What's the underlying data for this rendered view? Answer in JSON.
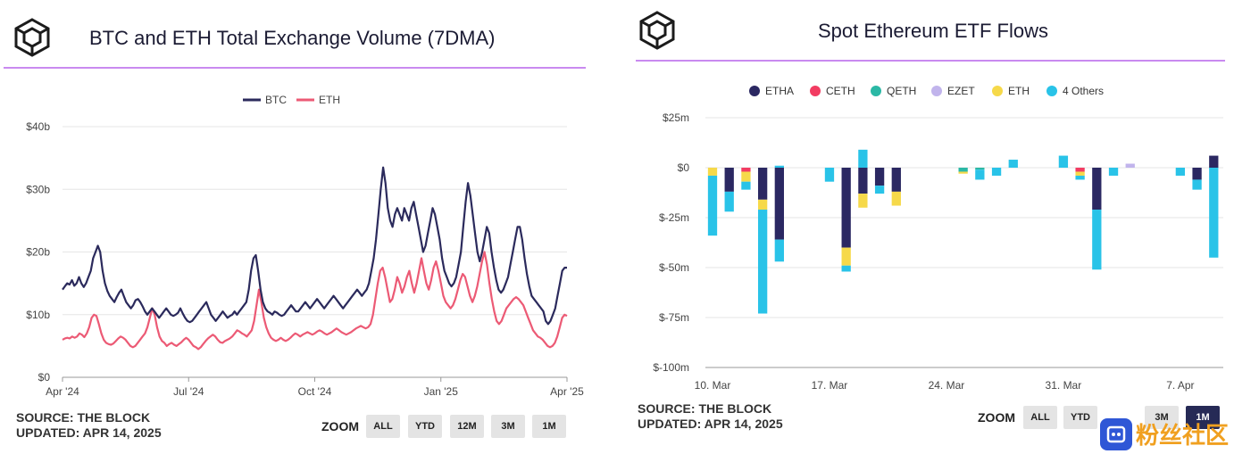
{
  "charts": [
    {
      "title": "BTC and ETH Total Exchange Volume (7DMA)",
      "footer": {
        "source": "SOURCE: THE BLOCK",
        "updated": "UPDATED: APR 14, 2025"
      },
      "zoom": {
        "label": "ZOOM",
        "buttons": [
          "ALL",
          "YTD",
          "12M",
          "3M",
          "1M"
        ]
      }
    },
    {
      "title": "Spot Ethereum ETF Flows",
      "footer": {
        "source": "SOURCE: THE BLOCK",
        "updated": "UPDATED: APR 14, 2025"
      },
      "zoom": {
        "label": "ZOOM",
        "buttons": [
          "ALL",
          "YTD",
          "3M",
          "1M"
        ],
        "active": "1M"
      }
    }
  ],
  "watermark": {
    "text": "粉丝社区"
  },
  "chart_data": [
    {
      "type": "line",
      "title": "BTC and ETH Total Exchange Volume (7DMA)",
      "xlabel": "",
      "ylabel": "",
      "x_ticks": [
        "Apr '24",
        "Jul '24",
        "Oct '24",
        "Jan '25",
        "Apr '25"
      ],
      "y_ticks": [
        "$0",
        "$10b",
        "$20b",
        "$30b",
        "$40b"
      ],
      "ylim": [
        0,
        40
      ],
      "grid": true,
      "legend": "top-center",
      "series": [
        {
          "name": "BTC",
          "color": "#2b2a5c",
          "values": [
            14,
            14.5,
            15,
            14.8,
            15.5,
            14.6,
            15,
            16,
            15,
            14.4,
            15,
            16,
            17,
            19,
            20,
            21,
            20,
            17,
            15,
            13.8,
            13,
            12.5,
            12,
            12.8,
            13.5,
            14,
            13,
            12,
            11.5,
            11,
            11.5,
            12.3,
            12.5,
            12,
            11.3,
            10.5,
            10,
            10.5,
            11,
            10.5,
            10,
            9.5,
            10,
            10.5,
            11,
            10.5,
            10,
            9.8,
            10,
            10.3,
            11,
            10.2,
            9.5,
            9,
            8.8,
            9,
            9.5,
            10,
            10.5,
            11,
            11.5,
            12,
            11,
            10,
            9.5,
            9,
            9.5,
            10,
            10.5,
            10,
            9.5,
            9.8,
            10,
            10.5,
            10,
            10.5,
            11,
            11.5,
            12,
            14,
            17,
            19,
            19.5,
            17,
            14,
            12,
            11,
            10.5,
            10.3,
            10,
            10.5,
            10.3,
            10,
            9.8,
            10,
            10.5,
            11,
            11.5,
            11,
            10.5,
            10.5,
            11,
            11.5,
            12,
            11.5,
            11,
            11.5,
            12,
            12.5,
            12,
            11.5,
            11,
            11.5,
            12,
            12.5,
            13,
            12.5,
            12,
            11.5,
            11,
            11.5,
            12,
            12.5,
            13,
            13.5,
            14,
            13.5,
            13,
            13.5,
            14,
            15,
            17,
            19,
            22,
            26,
            30,
            33.5,
            31,
            27,
            25,
            24,
            26,
            27,
            26,
            25,
            27,
            26,
            25,
            27,
            28,
            26,
            24,
            22,
            20,
            21,
            23,
            25,
            27,
            26,
            24,
            22,
            19,
            17,
            16,
            15,
            14.5,
            15,
            16,
            18,
            20,
            24,
            28,
            31,
            29,
            26,
            23,
            20,
            18.5,
            20,
            22,
            24,
            23,
            20,
            17.5,
            15.5,
            14,
            13.5,
            14,
            15,
            16,
            18,
            20,
            22,
            24,
            24,
            22,
            19,
            16.5,
            14.5,
            13,
            12.5,
            12,
            11.5,
            11,
            10.5,
            9,
            8.5,
            9,
            10,
            11,
            13,
            15,
            17,
            17.5,
            17.5
          ]
        },
        {
          "name": "ETH",
          "color": "#ec5a75",
          "values": [
            6,
            6.2,
            6.3,
            6.2,
            6.5,
            6.3,
            6.5,
            7,
            6.8,
            6.4,
            7,
            8,
            9.5,
            10,
            9.8,
            8.5,
            7,
            6,
            5.5,
            5.3,
            5.2,
            5.4,
            5.8,
            6.2,
            6.5,
            6.3,
            6,
            5.5,
            5,
            4.8,
            5,
            5.5,
            6,
            6.5,
            7,
            8,
            9.5,
            11,
            10,
            8,
            6.5,
            5.8,
            5.5,
            5,
            5.3,
            5.5,
            5.2,
            5,
            5.3,
            5.6,
            6,
            6.3,
            6,
            5.5,
            5,
            4.8,
            4.5,
            4.8,
            5.3,
            5.8,
            6.2,
            6.5,
            6.8,
            6.5,
            6,
            5.6,
            5.5,
            5.8,
            6,
            6.2,
            6.5,
            7,
            7.5,
            7.3,
            7,
            6.8,
            6.5,
            7,
            7.5,
            9,
            11.5,
            14,
            12,
            9.5,
            8,
            7,
            6.3,
            6,
            5.8,
            6,
            6.3,
            6,
            5.8,
            6,
            6.3,
            6.7,
            7,
            6.8,
            6.5,
            6.8,
            7,
            7.2,
            7,
            6.8,
            7,
            7.3,
            7.5,
            7.3,
            7,
            6.8,
            7,
            7.2,
            7.5,
            7.8,
            7.5,
            7.2,
            7,
            6.8,
            7,
            7.2,
            7.5,
            7.8,
            8,
            8.2,
            8,
            7.8,
            8,
            8.5,
            10,
            12.5,
            15,
            17,
            17.5,
            16,
            14,
            12,
            12.5,
            14,
            16,
            15,
            13.5,
            14.5,
            16,
            17,
            15,
            13.5,
            15,
            17,
            19,
            17,
            15,
            14,
            15.5,
            17.5,
            18.5,
            17,
            15,
            13,
            12,
            11.5,
            11,
            11.5,
            12.5,
            14,
            15.5,
            16.5,
            16,
            14.5,
            13,
            12,
            13,
            14.5,
            16.5,
            18.5,
            20,
            18,
            15,
            12.5,
            10.5,
            9,
            8.5,
            9,
            10,
            11,
            11.5,
            12,
            12.5,
            12.8,
            12.5,
            12,
            11.5,
            10.5,
            9.5,
            8.5,
            7.5,
            7,
            6.5,
            6.3,
            6,
            5.5,
            5,
            4.8,
            5,
            5.5,
            6.5,
            8,
            9.5,
            10,
            9.8
          ]
        }
      ]
    },
    {
      "type": "bar",
      "stacked": true,
      "title": "Spot Ethereum ETF Flows",
      "xlabel": "",
      "ylabel": "",
      "x_ticks": [
        "10. Mar",
        "17. Mar",
        "24. Mar",
        "31. Mar",
        "7. Apr"
      ],
      "y_ticks": [
        "$25m",
        "$0",
        "$-25m",
        "$-50m",
        "$-75m",
        "$-100m"
      ],
      "ylim": [
        -100,
        25
      ],
      "grid": true,
      "legend": "top-center",
      "series_names": [
        "ETHA",
        "CETH",
        "QETH",
        "EZET",
        "ETH",
        "4 Others"
      ],
      "series_colors": [
        "#2b2862",
        "#f23c62",
        "#2bb8a5",
        "#c1b4ec",
        "#f6d94a",
        "#29c3e8"
      ],
      "bars": [
        {
          "x": "10. Mar",
          "ETHA": 0,
          "CETH": 0,
          "QETH": 0,
          "EZET": 0,
          "ETH": -4,
          "4 Others": -30
        },
        {
          "x": "11. Mar",
          "ETHA": -12,
          "CETH": 0,
          "QETH": 0,
          "EZET": 0,
          "ETH": 0,
          "4 Others": -10
        },
        {
          "x": "12. Mar",
          "ETHA": 0,
          "CETH": -2,
          "QETH": 0,
          "EZET": 0,
          "ETH": -5,
          "4 Others": -4
        },
        {
          "x": "13. Mar",
          "ETHA": -16,
          "CETH": 0,
          "QETH": 0,
          "EZET": 0,
          "ETH": -5,
          "4 Others": -52
        },
        {
          "x": "14. Mar",
          "ETHA": -36,
          "CETH": 0,
          "QETH": 0,
          "EZET": 0,
          "ETH": 0,
          "4 Others": -11,
          "4 Others_pos": 1
        },
        {
          "x": "17. Mar",
          "ETHA": 0,
          "CETH": 0,
          "QETH": 0,
          "EZET": 0,
          "ETH": 0,
          "4 Others": -7
        },
        {
          "x": "18. Mar",
          "ETHA": -40,
          "CETH": 0,
          "QETH": 0,
          "EZET": 0,
          "ETH": -9,
          "4 Others": -3
        },
        {
          "x": "19. Mar",
          "ETHA": -13,
          "CETH": 0,
          "QETH": 0,
          "EZET": 0,
          "ETH": -7,
          "4 Others_pos": 9
        },
        {
          "x": "20. Mar",
          "ETHA": -9,
          "CETH": 0,
          "QETH": 0,
          "EZET": 0,
          "ETH": 0,
          "4 Others": -4
        },
        {
          "x": "21. Mar",
          "ETHA": -12,
          "CETH": 0,
          "QETH": 0,
          "EZET": 0,
          "ETH": -7,
          "4 Others": 0
        },
        {
          "x": "25. Mar",
          "ETHA": 0,
          "CETH": 0,
          "QETH": -2,
          "EZET": 0,
          "ETH": -1,
          "4 Others": 0
        },
        {
          "x": "26. Mar",
          "ETHA": 0,
          "CETH": 0,
          "QETH": -1,
          "EZET": 0,
          "ETH": 0,
          "4 Others": -5
        },
        {
          "x": "27. Mar",
          "ETHA": 0,
          "CETH": 0,
          "QETH": 0,
          "EZET": 0,
          "ETH": 0,
          "4 Others": -4
        },
        {
          "x": "28. Mar",
          "ETHA": 0,
          "CETH": 0,
          "QETH": 0,
          "EZET": 0,
          "ETH": 0,
          "4 Others_pos": 4
        },
        {
          "x": "31. Mar",
          "ETHA": 0,
          "CETH": 0,
          "QETH": 0,
          "EZET": 0,
          "ETH": 0,
          "4 Others_pos": 6
        },
        {
          "x": "1. Apr",
          "ETHA": 0,
          "CETH": -2,
          "QETH": 0,
          "EZET": 0,
          "ETH": -2,
          "4 Others": -2
        },
        {
          "x": "2. Apr",
          "ETHA": -21,
          "CETH": 0,
          "QETH": 0,
          "EZET": 0,
          "ETH": 0,
          "4 Others": -30
        },
        {
          "x": "3. Apr",
          "ETHA": 0,
          "CETH": 0,
          "QETH": 0,
          "EZET": 0,
          "ETH": 0,
          "4 Others": -4
        },
        {
          "x": "4. Apr",
          "ETHA": 0,
          "CETH": 0,
          "QETH": 0,
          "EZET_pos": 2,
          "ETH": 0,
          "4 Others": 0
        },
        {
          "x": "7. Apr",
          "ETHA": 0,
          "CETH": 0,
          "QETH": 0,
          "EZET": 0,
          "ETH": 0,
          "4 Others": -4
        },
        {
          "x": "8. Apr",
          "ETHA": -6,
          "CETH": 0,
          "QETH": 0,
          "EZET": 0,
          "ETH": 0,
          "4 Others": -5
        },
        {
          "x": "9. Apr",
          "ETHA_pos": 6,
          "CETH": 0,
          "QETH": 0,
          "EZET": 0,
          "ETH": 0,
          "4 Others": -45
        }
      ]
    }
  ]
}
